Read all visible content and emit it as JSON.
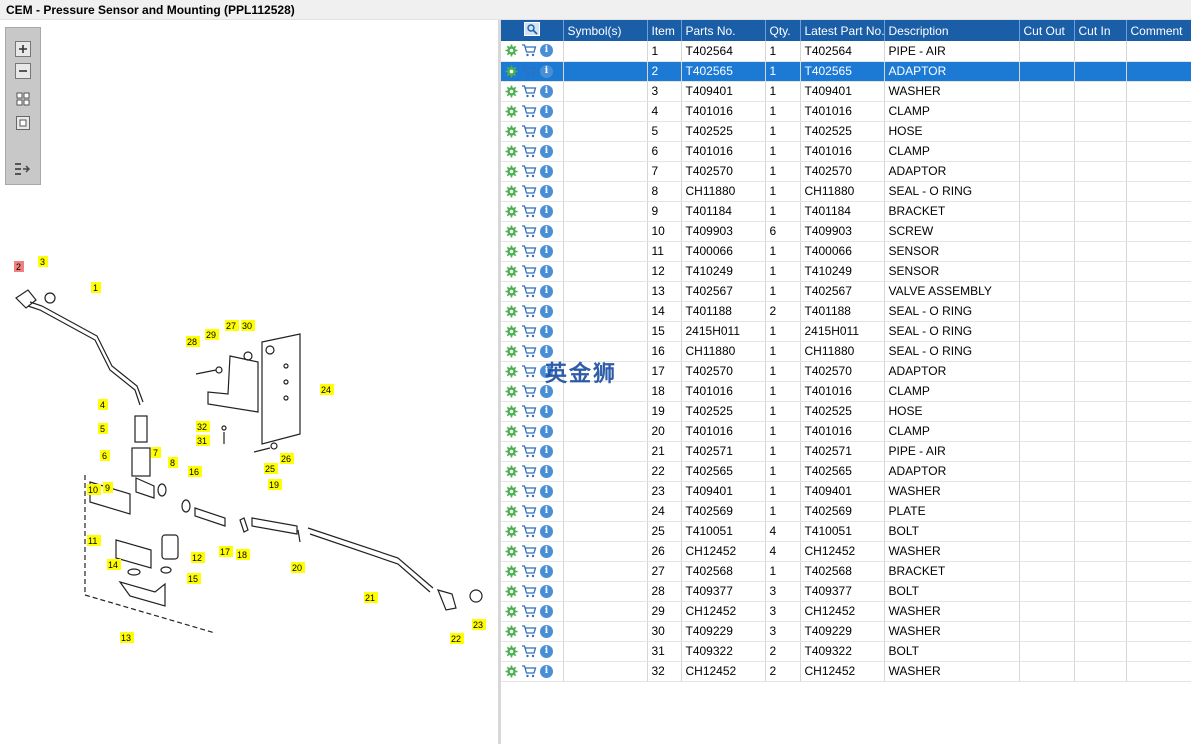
{
  "window": {
    "title": "CEM - Pressure Sensor and Mounting (PPL112528)"
  },
  "toolbox": {
    "buttons": [
      {
        "name": "zoom-in-icon"
      },
      {
        "name": "zoom-out-icon"
      },
      {
        "name": "fit-grid-icon"
      },
      {
        "name": "fit-window-icon"
      },
      {
        "name": "toggle-list-icon"
      }
    ]
  },
  "watermark": "英金狮",
  "colors": {
    "header": "#1b5ea8",
    "selected_row": "#1c7ad4",
    "callout_yellow": "#ffff00",
    "callout_red": "#f08080"
  },
  "diagram": {
    "callouts": [
      "1",
      "2",
      "3",
      "4",
      "5",
      "6",
      "7",
      "8",
      "9",
      "10",
      "11",
      "12",
      "13",
      "14",
      "15",
      "16",
      "17",
      "18",
      "19",
      "20",
      "21",
      "22",
      "23",
      "24",
      "25",
      "26",
      "27",
      "28",
      "29",
      "30",
      "31",
      "32"
    ],
    "highlighted": "2"
  },
  "table": {
    "columns": [
      "",
      "Symbol(s)",
      "Item",
      "Parts No.",
      "Qty.",
      "Latest Part No.",
      "Description",
      "Cut Out",
      "Cut In",
      "Comment"
    ],
    "selected_item": "2",
    "rows": [
      {
        "item": "1",
        "part": "T402564",
        "qty": "1",
        "latest": "T402564",
        "desc": "PIPE - AIR"
      },
      {
        "item": "2",
        "part": "T402565",
        "qty": "1",
        "latest": "T402565",
        "desc": "ADAPTOR"
      },
      {
        "item": "3",
        "part": "T409401",
        "qty": "1",
        "latest": "T409401",
        "desc": "WASHER"
      },
      {
        "item": "4",
        "part": "T401016",
        "qty": "1",
        "latest": "T401016",
        "desc": "CLAMP"
      },
      {
        "item": "5",
        "part": "T402525",
        "qty": "1",
        "latest": "T402525",
        "desc": "HOSE"
      },
      {
        "item": "6",
        "part": "T401016",
        "qty": "1",
        "latest": "T401016",
        "desc": "CLAMP"
      },
      {
        "item": "7",
        "part": "T402570",
        "qty": "1",
        "latest": "T402570",
        "desc": "ADAPTOR"
      },
      {
        "item": "8",
        "part": "CH11880",
        "qty": "1",
        "latest": "CH11880",
        "desc": "SEAL - O RING"
      },
      {
        "item": "9",
        "part": "T401184",
        "qty": "1",
        "latest": "T401184",
        "desc": "BRACKET"
      },
      {
        "item": "10",
        "part": "T409903",
        "qty": "6",
        "latest": "T409903",
        "desc": "SCREW"
      },
      {
        "item": "11",
        "part": "T400066",
        "qty": "1",
        "latest": "T400066",
        "desc": "SENSOR"
      },
      {
        "item": "12",
        "part": "T410249",
        "qty": "1",
        "latest": "T410249",
        "desc": "SENSOR"
      },
      {
        "item": "13",
        "part": "T402567",
        "qty": "1",
        "latest": "T402567",
        "desc": "VALVE ASSEMBLY"
      },
      {
        "item": "14",
        "part": "T401188",
        "qty": "2",
        "latest": "T401188",
        "desc": "SEAL - O RING"
      },
      {
        "item": "15",
        "part": "2415H011",
        "qty": "1",
        "latest": "2415H011",
        "desc": "SEAL - O RING"
      },
      {
        "item": "16",
        "part": "CH11880",
        "qty": "1",
        "latest": "CH11880",
        "desc": "SEAL - O RING"
      },
      {
        "item": "17",
        "part": "T402570",
        "qty": "1",
        "latest": "T402570",
        "desc": "ADAPTOR"
      },
      {
        "item": "18",
        "part": "T401016",
        "qty": "1",
        "latest": "T401016",
        "desc": "CLAMP"
      },
      {
        "item": "19",
        "part": "T402525",
        "qty": "1",
        "latest": "T402525",
        "desc": "HOSE"
      },
      {
        "item": "20",
        "part": "T401016",
        "qty": "1",
        "latest": "T401016",
        "desc": "CLAMP"
      },
      {
        "item": "21",
        "part": "T402571",
        "qty": "1",
        "latest": "T402571",
        "desc": "PIPE - AIR"
      },
      {
        "item": "22",
        "part": "T402565",
        "qty": "1",
        "latest": "T402565",
        "desc": "ADAPTOR"
      },
      {
        "item": "23",
        "part": "T409401",
        "qty": "1",
        "latest": "T409401",
        "desc": "WASHER"
      },
      {
        "item": "24",
        "part": "T402569",
        "qty": "1",
        "latest": "T402569",
        "desc": "PLATE"
      },
      {
        "item": "25",
        "part": "T410051",
        "qty": "4",
        "latest": "T410051",
        "desc": "BOLT"
      },
      {
        "item": "26",
        "part": "CH12452",
        "qty": "4",
        "latest": "CH12452",
        "desc": "WASHER"
      },
      {
        "item": "27",
        "part": "T402568",
        "qty": "1",
        "latest": "T402568",
        "desc": "BRACKET"
      },
      {
        "item": "28",
        "part": "T409377",
        "qty": "3",
        "latest": "T409377",
        "desc": "BOLT"
      },
      {
        "item": "29",
        "part": "CH12452",
        "qty": "3",
        "latest": "CH12452",
        "desc": "WASHER"
      },
      {
        "item": "30",
        "part": "T409229",
        "qty": "3",
        "latest": "T409229",
        "desc": "WASHER"
      },
      {
        "item": "31",
        "part": "T409322",
        "qty": "2",
        "latest": "T409322",
        "desc": "BOLT"
      },
      {
        "item": "32",
        "part": "CH12452",
        "qty": "2",
        "latest": "CH12452",
        "desc": "WASHER"
      }
    ]
  }
}
